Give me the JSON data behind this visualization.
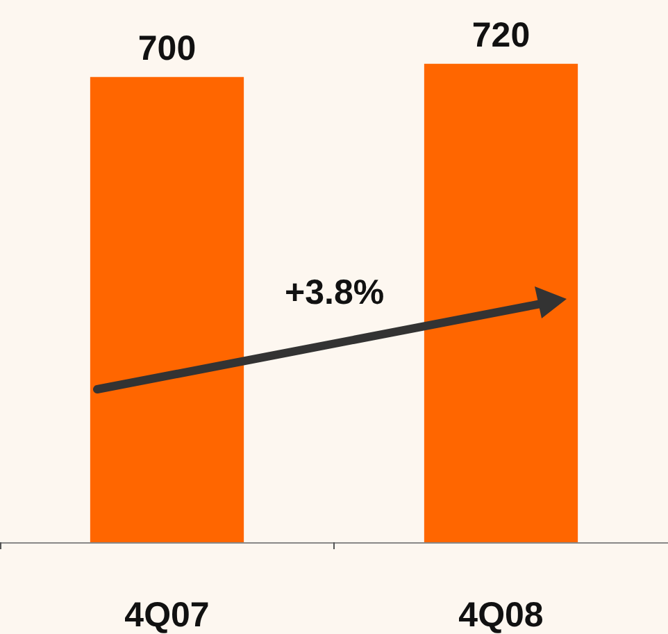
{
  "chart_data": {
    "type": "bar",
    "categories": [
      "4Q07",
      "4Q08"
    ],
    "values": [
      700,
      720
    ],
    "color": "#ff6600",
    "data_labels": true,
    "grid": false,
    "annotations": [
      "+3.8%"
    ]
  }
}
